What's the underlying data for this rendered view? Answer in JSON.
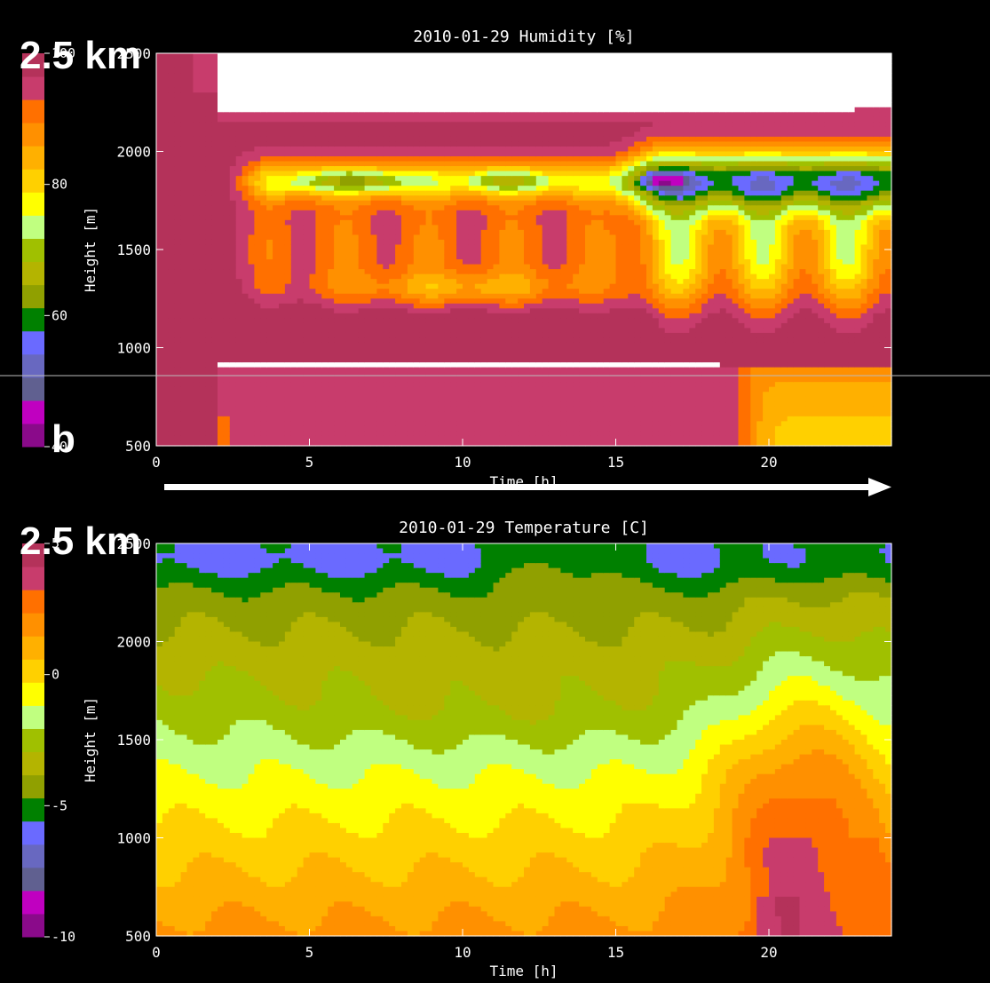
{
  "overlay": {
    "top_label": "2.5 km",
    "bottom_label": "2.5 km",
    "panel_letter": "b"
  },
  "chart_data": [
    {
      "type": "heatmap",
      "title": "2010-01-29   Humidity [%]",
      "xlabel": "Time [h]",
      "ylabel": "Height [m]",
      "xlim": [
        0,
        24
      ],
      "ylim": [
        500,
        2500
      ],
      "x_ticks": [
        0,
        5,
        10,
        15,
        20
      ],
      "y_ticks": [
        500,
        1000,
        1500,
        2000,
        2500
      ],
      "colorbar": {
        "min": 40,
        "max": 100,
        "tick_values": [
          40,
          60,
          80,
          100
        ],
        "tick_labels": [
          "40",
          "60",
          "80",
          "100"
        ]
      },
      "colors": [
        "#8a0a8a",
        "#c000c0",
        "#606090",
        "#6868c0",
        "#6a6aff",
        "#008000",
        "#90a000",
        "#b4b400",
        "#a0c000",
        "#c0ff80",
        "#ffff00",
        "#ffd000",
        "#ffb000",
        "#ff9000",
        "#ff7000",
        "#c83c6c",
        "#b4325a"
      ],
      "features": {
        "cloud_top_height_m": 2200,
        "cloud_base_height_m": 1850,
        "inversion_height_m": 900,
        "min_humidity_percent": 58,
        "max_humidity_percent": 100
      }
    },
    {
      "type": "heatmap",
      "title": "2010-01-29   Temperature [C]",
      "xlabel": "Time [h]",
      "ylabel": "Height [m]",
      "xlim": [
        0,
        24
      ],
      "ylim": [
        500,
        2500
      ],
      "x_ticks": [
        0,
        5,
        10,
        15,
        20
      ],
      "y_ticks": [
        500,
        1000,
        1500,
        2000,
        2500
      ],
      "colorbar": {
        "min": -10,
        "max": 5,
        "tick_values": [
          -10,
          -5,
          0,
          5
        ],
        "tick_labels": [
          "-10",
          "-5",
          "0",
          "5"
        ]
      },
      "colors": [
        "#8a0a8a",
        "#c000c0",
        "#606090",
        "#6868c0",
        "#6a6aff",
        "#008000",
        "#90a000",
        "#b4b400",
        "#a0c000",
        "#c0ff80",
        "#ffff00",
        "#ffd000",
        "#ffb000",
        "#ff9000",
        "#ff7000",
        "#c83c6c",
        "#b4325a"
      ],
      "features": {
        "surface_temperature_c": 1.5,
        "temperature_at_2500m_c": -5.5,
        "afternoon_warm_core_c": 4.5
      }
    }
  ]
}
